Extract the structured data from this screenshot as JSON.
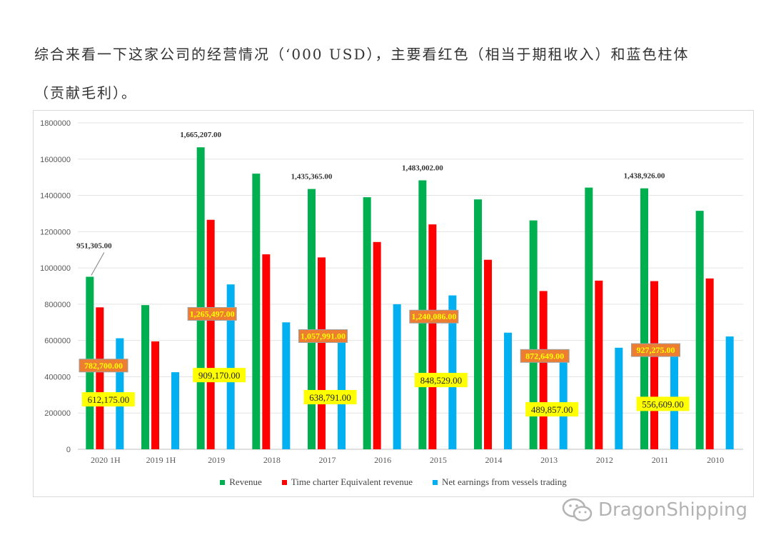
{
  "text": {
    "line1": "综合来看一下这家公司的经营情况（‘000 USD），主要看红色（相当于期租收入）和蓝色柱体",
    "line2": "（贡献毛利）。"
  },
  "watermark": {
    "text": "DragonShipping"
  },
  "chart_data": {
    "type": "bar",
    "categories": [
      "2020 1H",
      "2019 1H",
      "2019",
      "2018",
      "2017",
      "2016",
      "2015",
      "2014",
      "2013",
      "2012",
      "2011",
      "2010"
    ],
    "series": [
      {
        "name": "Revenue",
        "color": "#00b050",
        "values": [
          951305,
          795000,
          1665207,
          1520000,
          1435365,
          1390000,
          1483002,
          1378000,
          1262000,
          1443000,
          1438926,
          1315000
        ]
      },
      {
        "name": "Time charter Equivalent revenue",
        "color": "#ff0000",
        "values": [
          782700,
          595000,
          1265497,
          1075000,
          1057991,
          1143000,
          1240086,
          1045000,
          872649,
          930000,
          927275,
          942000
        ]
      },
      {
        "name": "Net earnings from vessels trading",
        "color": "#00b0f0",
        "values": [
          612175,
          425000,
          909170,
          700000,
          638791,
          800000,
          848529,
          643000,
          489857,
          560000,
          556609,
          622000
        ]
      }
    ],
    "ylim": [
      0,
      1800000
    ],
    "yticks": [
      0,
      200000,
      400000,
      600000,
      800000,
      1000000,
      1200000,
      1400000,
      1600000,
      1800000
    ],
    "ytick_labels": [
      "0",
      "200000",
      "400000",
      "600000",
      "800000",
      "1000000",
      "1200000",
      "1400000",
      "1600000",
      "1800000"
    ],
    "grid": true,
    "legend_position": "bottom",
    "annotations": {
      "revenue": [
        {
          "category": "2020 1H",
          "text": "951,305.00"
        },
        {
          "category": "2019",
          "text": "1,665,207.00"
        },
        {
          "category": "2017",
          "text": "1,435,365.00"
        },
        {
          "category": "2015",
          "text": "1,483,002.00"
        },
        {
          "category": "2011",
          "text": "1,438,926.00"
        }
      ],
      "tce": [
        {
          "category": "2020 1H",
          "text": "782,700.00"
        },
        {
          "category": "2019",
          "text": "1,265,497.00"
        },
        {
          "category": "2017",
          "text": "1,057,991.00"
        },
        {
          "category": "2015",
          "text": "1,240,086.00"
        },
        {
          "category": "2013",
          "text": "872,649.00"
        },
        {
          "category": "2011",
          "text": "927,275.00"
        }
      ],
      "net": [
        {
          "category": "2020 1H",
          "text": "612,175.00"
        },
        {
          "category": "2019",
          "text": "909,170.00"
        },
        {
          "category": "2017",
          "text": "638,791.00"
        },
        {
          "category": "2015",
          "text": "848,529.00"
        },
        {
          "category": "2013",
          "text": "489,857.00"
        },
        {
          "category": "2011",
          "text": "556,609.00"
        }
      ]
    }
  }
}
